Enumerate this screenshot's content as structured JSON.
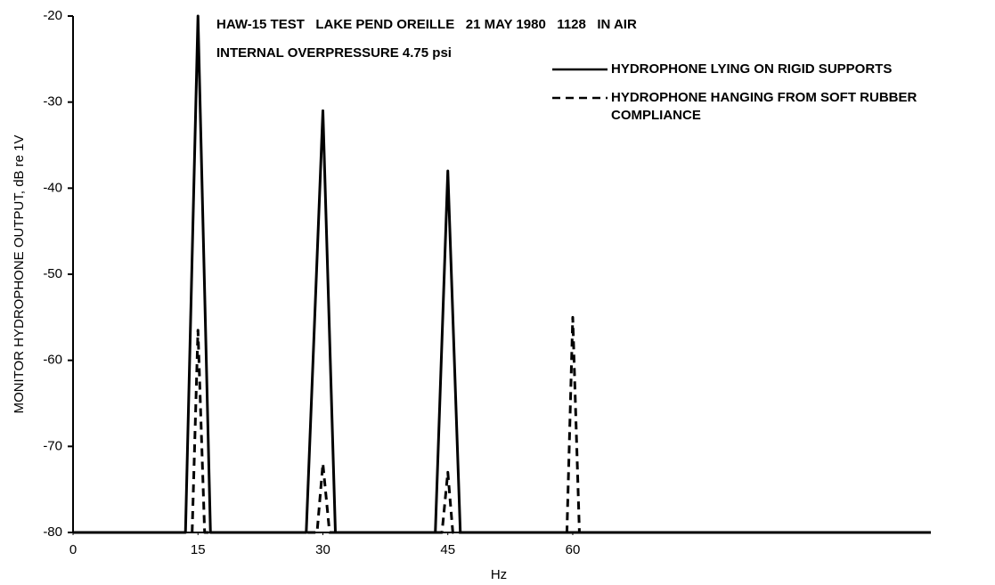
{
  "chart_data": {
    "type": "line",
    "title": "HAW-15 TEST   LAKE PEND OREILLE   21 MAY 1980   1128   IN AIR",
    "subtitle": "INTERNAL OVERPRESSURE 4.75 psi",
    "y_label": "MONITOR HYDROPHONE OUTPUT, dB re 1V",
    "x_label": "Hz",
    "xlim": [
      0,
      103
    ],
    "xticks": [
      0,
      15,
      30,
      45,
      60
    ],
    "ylim": [
      -80,
      -20
    ],
    "yticks": [
      -20,
      -30,
      -40,
      -50,
      -60,
      -70,
      -80
    ],
    "grid": false,
    "legend": "upper right",
    "series": [
      {
        "name": "HYDROPHONE LYING ON RIGID SUPPORTS",
        "color": "#000000",
        "line_style": "solid",
        "x": [
          0,
          13.5,
          15,
          16.5,
          28,
          30,
          31.5,
          43.5,
          45,
          46.5,
          103
        ],
        "values": [
          -80,
          -80,
          -20,
          -80,
          -80,
          -31,
          -80,
          -80,
          -38,
          -80,
          -80
        ]
      },
      {
        "name": "HYDROPHONE HANGING FROM SOFT RUBBER COMPLIANCE",
        "color": "#000000",
        "line_style": "dashed",
        "x": [
          14.3,
          15,
          15.8,
          29.3,
          30,
          30.8,
          44.3,
          45,
          45.6,
          59.3,
          60,
          60.8
        ],
        "values": [
          -80,
          -56.5,
          -80,
          -80,
          -72,
          -80,
          -80,
          -73,
          -80,
          -80,
          -55,
          -80
        ]
      }
    ]
  }
}
